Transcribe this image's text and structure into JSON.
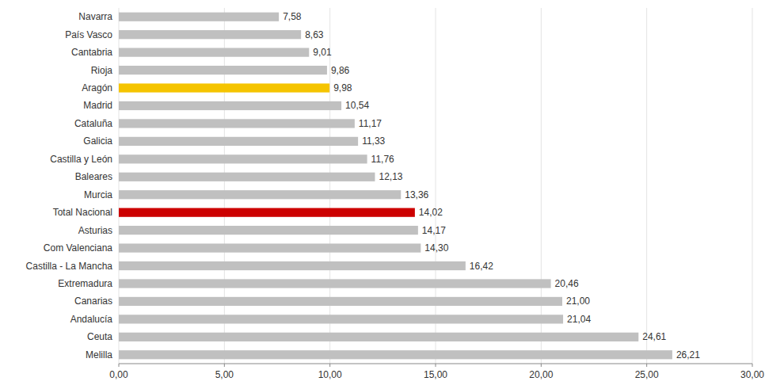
{
  "chart_data": {
    "type": "bar",
    "orientation": "horizontal",
    "categories": [
      "Melilla",
      "Ceuta",
      "Andalucía",
      "Canarias",
      "Extremadura",
      "Castilla - La Mancha",
      "Com Valenciana",
      "Asturias",
      "Total Nacional",
      "Murcia",
      "Baleares",
      "Castilla y León",
      "Galicia",
      "Cataluña",
      "Madrid",
      "Aragón",
      "Rioja",
      "Cantabria",
      "País Vasco",
      "Navarra"
    ],
    "values": [
      26.21,
      24.61,
      21.04,
      21.0,
      20.46,
      16.42,
      14.3,
      14.17,
      14.02,
      13.36,
      12.13,
      11.76,
      11.33,
      11.17,
      10.54,
      9.98,
      9.86,
      9.01,
      8.63,
      7.58
    ],
    "value_labels": [
      "26,21",
      "24,61",
      "21,04",
      "21,00",
      "20,46",
      "16,42",
      "14,30",
      "14,17",
      "14,02",
      "13,36",
      "12,13",
      "11,76",
      "11,33",
      "11,17",
      "10,54",
      "9,98",
      "9,86",
      "9,01",
      "8,63",
      "7,58"
    ],
    "colors": [
      "#c0c0c0",
      "#c0c0c0",
      "#c0c0c0",
      "#c0c0c0",
      "#c0c0c0",
      "#c0c0c0",
      "#c0c0c0",
      "#c0c0c0",
      "#cc0000",
      "#c0c0c0",
      "#c0c0c0",
      "#c0c0c0",
      "#c0c0c0",
      "#c0c0c0",
      "#c0c0c0",
      "#f5c400",
      "#c0c0c0",
      "#c0c0c0",
      "#c0c0c0",
      "#c0c0c0"
    ],
    "xlim": [
      0,
      30
    ],
    "xticks": [
      {
        "value": 0,
        "label": "0,00"
      },
      {
        "value": 5,
        "label": "5,00"
      },
      {
        "value": 10,
        "label": "10,00"
      },
      {
        "value": 15,
        "label": "15,00"
      },
      {
        "value": 20,
        "label": "20,00"
      },
      {
        "value": 25,
        "label": "25,00"
      },
      {
        "value": 30,
        "label": "30,00"
      }
    ],
    "grid": true,
    "data_labels": true
  }
}
